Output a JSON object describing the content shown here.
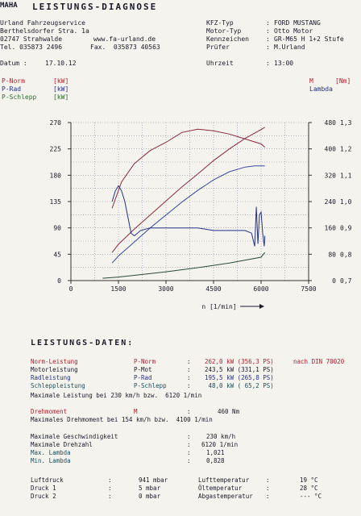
{
  "header": {
    "logo": "MAHA",
    "title": "LEISTUNGS-DIAGNOSE",
    "company": {
      "name": "Urland Fahrzeugservice",
      "street": "Berthelsdorfer Stra. 1a",
      "city": "02747 Strahwalde",
      "web": "www.fa-urland.de",
      "phone": "Tel. 035873 2496",
      "fax": "Fax.  035873 40563"
    },
    "date_label": "Datum :",
    "date_value": "17.10.12",
    "vehicle": {
      "kfz_label": "KFZ-Typ",
      "kfz_value": "FORD MUSTANG",
      "motor_label": "Motor-Typ",
      "motor_value": "Otto Motor",
      "kennz_label": "Kennzeichen",
      "kennz_value": "GR-M65 H 1+2 Stufe",
      "pruefer_label": "Prüfer",
      "pruefer_value": "M.Urland",
      "uhrzeit_label": "Uhrzeit",
      "uhrzeit_value": "13:00"
    }
  },
  "legend": {
    "left": [
      {
        "name": "P-Norm",
        "unit": "[kW]",
        "color": "#b21d2b"
      },
      {
        "name": "P-Rad",
        "unit": "[kW]",
        "color": "#24308a"
      },
      {
        "name": "P-Schlepp",
        "unit": "[kW]",
        "color": "#2d6b2d"
      }
    ],
    "right_m": "M",
    "right_m_unit": "[Nm]",
    "right_lambda": "Lambda"
  },
  "chart_data": {
    "type": "line",
    "xlabel": "n [1/min]",
    "x_ticks": [
      "0",
      "1500",
      "3000",
      "4500",
      "6000",
      "7500"
    ],
    "xlim": [
      0,
      7500
    ],
    "y_left_ticks": [
      "0",
      "45",
      "90",
      "135",
      "180",
      "225",
      "270"
    ],
    "ylim_left": [
      0,
      270
    ],
    "y_right_m_ticks": [
      "0",
      "80",
      "160",
      "240",
      "320",
      "400",
      "480"
    ],
    "ylim_right_m": [
      0,
      480
    ],
    "y_right_lambda_ticks": [
      "0,7",
      "0,8",
      "0,9",
      "1,0",
      "1,1",
      "1,2",
      "1,3"
    ],
    "ylim_right_lambda": [
      0.7,
      1.3
    ],
    "grid": true,
    "series": [
      {
        "name": "P-Norm",
        "axis": "left",
        "color": "#8a2a3a",
        "x": [
          1300,
          1500,
          2000,
          2500,
          3000,
          3500,
          4000,
          4500,
          5000,
          5500,
          6000,
          6120
        ],
        "y": [
          48,
          62,
          88,
          112,
          136,
          160,
          182,
          205,
          225,
          243,
          258,
          262
        ]
      },
      {
        "name": "P-Rad",
        "axis": "left",
        "color": "#3a4aa0",
        "x": [
          1300,
          1500,
          2000,
          2500,
          3000,
          3500,
          4000,
          4500,
          5000,
          5500,
          5800,
          6120
        ],
        "y": [
          30,
          42,
          66,
          90,
          112,
          134,
          154,
          172,
          186,
          194,
          196,
          196
        ]
      },
      {
        "name": "P-Schlepp",
        "axis": "left",
        "color": "#2a4a3a",
        "x": [
          1000,
          1500,
          2000,
          3000,
          4000,
          5000,
          6000,
          6120
        ],
        "y": [
          4,
          6,
          9,
          15,
          22,
          30,
          40,
          48
        ]
      },
      {
        "name": "M",
        "axis": "right_m",
        "color": "#8a2a3a",
        "x": [
          1300,
          1600,
          2000,
          2500,
          3000,
          3500,
          4000,
          4500,
          5000,
          5500,
          6000,
          6120
        ],
        "y": [
          220,
          300,
          355,
          395,
          420,
          450,
          460,
          455,
          445,
          430,
          415,
          405
        ]
      },
      {
        "name": "Lambda",
        "axis": "right_lambda",
        "color": "#24308a",
        "x": [
          1300,
          1400,
          1500,
          1600,
          1700,
          1800,
          1900,
          2000,
          2100,
          2200,
          2500,
          3000,
          3500,
          4000,
          4500,
          5000,
          5500,
          5700,
          5800,
          5850,
          5900,
          5950,
          6000,
          6050,
          6100,
          6120
        ],
        "y": [
          1.0,
          1.04,
          1.06,
          1.04,
          1.0,
          0.94,
          0.88,
          0.87,
          0.88,
          0.89,
          0.9,
          0.9,
          0.9,
          0.9,
          0.89,
          0.89,
          0.89,
          0.88,
          0.83,
          0.98,
          0.84,
          0.95,
          0.96,
          0.88,
          0.83,
          0.87
        ]
      }
    ]
  },
  "results": {
    "title": "LEISTUNGS-DATEN:",
    "rows": [
      {
        "label": "Norm-Leistung",
        "sym": "P-Norm",
        "colon": ":",
        "value": "262,0 kW (356,3 PS)",
        "extra": "nach DIN 70020",
        "color": "#b21d2b"
      },
      {
        "label": "Motorleistung",
        "sym": "P-Mot",
        "colon": ":",
        "value": "243,5 kW (331,1 PS)",
        "extra": "",
        "color": "#1a1a2a"
      },
      {
        "label": "Radleistung",
        "sym": "P-Rad",
        "colon": ":",
        "value": "195,5 kW (265,8 PS)",
        "extra": "",
        "color": "#24308a"
      },
      {
        "label": "Schleppleistung",
        "sym": "P-Schlepp",
        "colon": ":",
        "value": " 48,0 kW ( 65,2 PS)",
        "extra": "",
        "color": "#1d4f5c"
      }
    ],
    "max_power": "Maximale Leistung bei 230 km/h bzw.  6120 1/min",
    "torque_label": "Drehmoment",
    "torque_sym": "M",
    "torque_colon": ":",
    "torque_value": "460 Nm",
    "max_torque": "Maximales Drehmoment bei 154 km/h bzw.  4100 1/min",
    "max_speed_label": "Maximale Geschwindigkeit",
    "max_speed_value": "230 km/h",
    "max_rpm_label": "Maximale Drehzahl",
    "max_rpm_value": "6120 1/min",
    "max_lambda_label": "Max. Lambda",
    "max_lambda_value": "1,021",
    "min_lambda_label": "Min. Lambda",
    "min_lambda_value": "0,828",
    "colon": ":"
  },
  "ambient": {
    "left": [
      {
        "label": "Luftdruck",
        "value": "941 mbar"
      },
      {
        "label": "Druck 1",
        "value": "5 mbar"
      },
      {
        "label": "Druck 2",
        "value": "0 mbar"
      }
    ],
    "right": [
      {
        "label": "Lufttemperatur",
        "value": "19 °C"
      },
      {
        "label": "Öltemperatur",
        "value": "28 °C"
      },
      {
        "label": "Abgastemperatur",
        "value": "--- °C"
      }
    ],
    "colon": ":"
  }
}
